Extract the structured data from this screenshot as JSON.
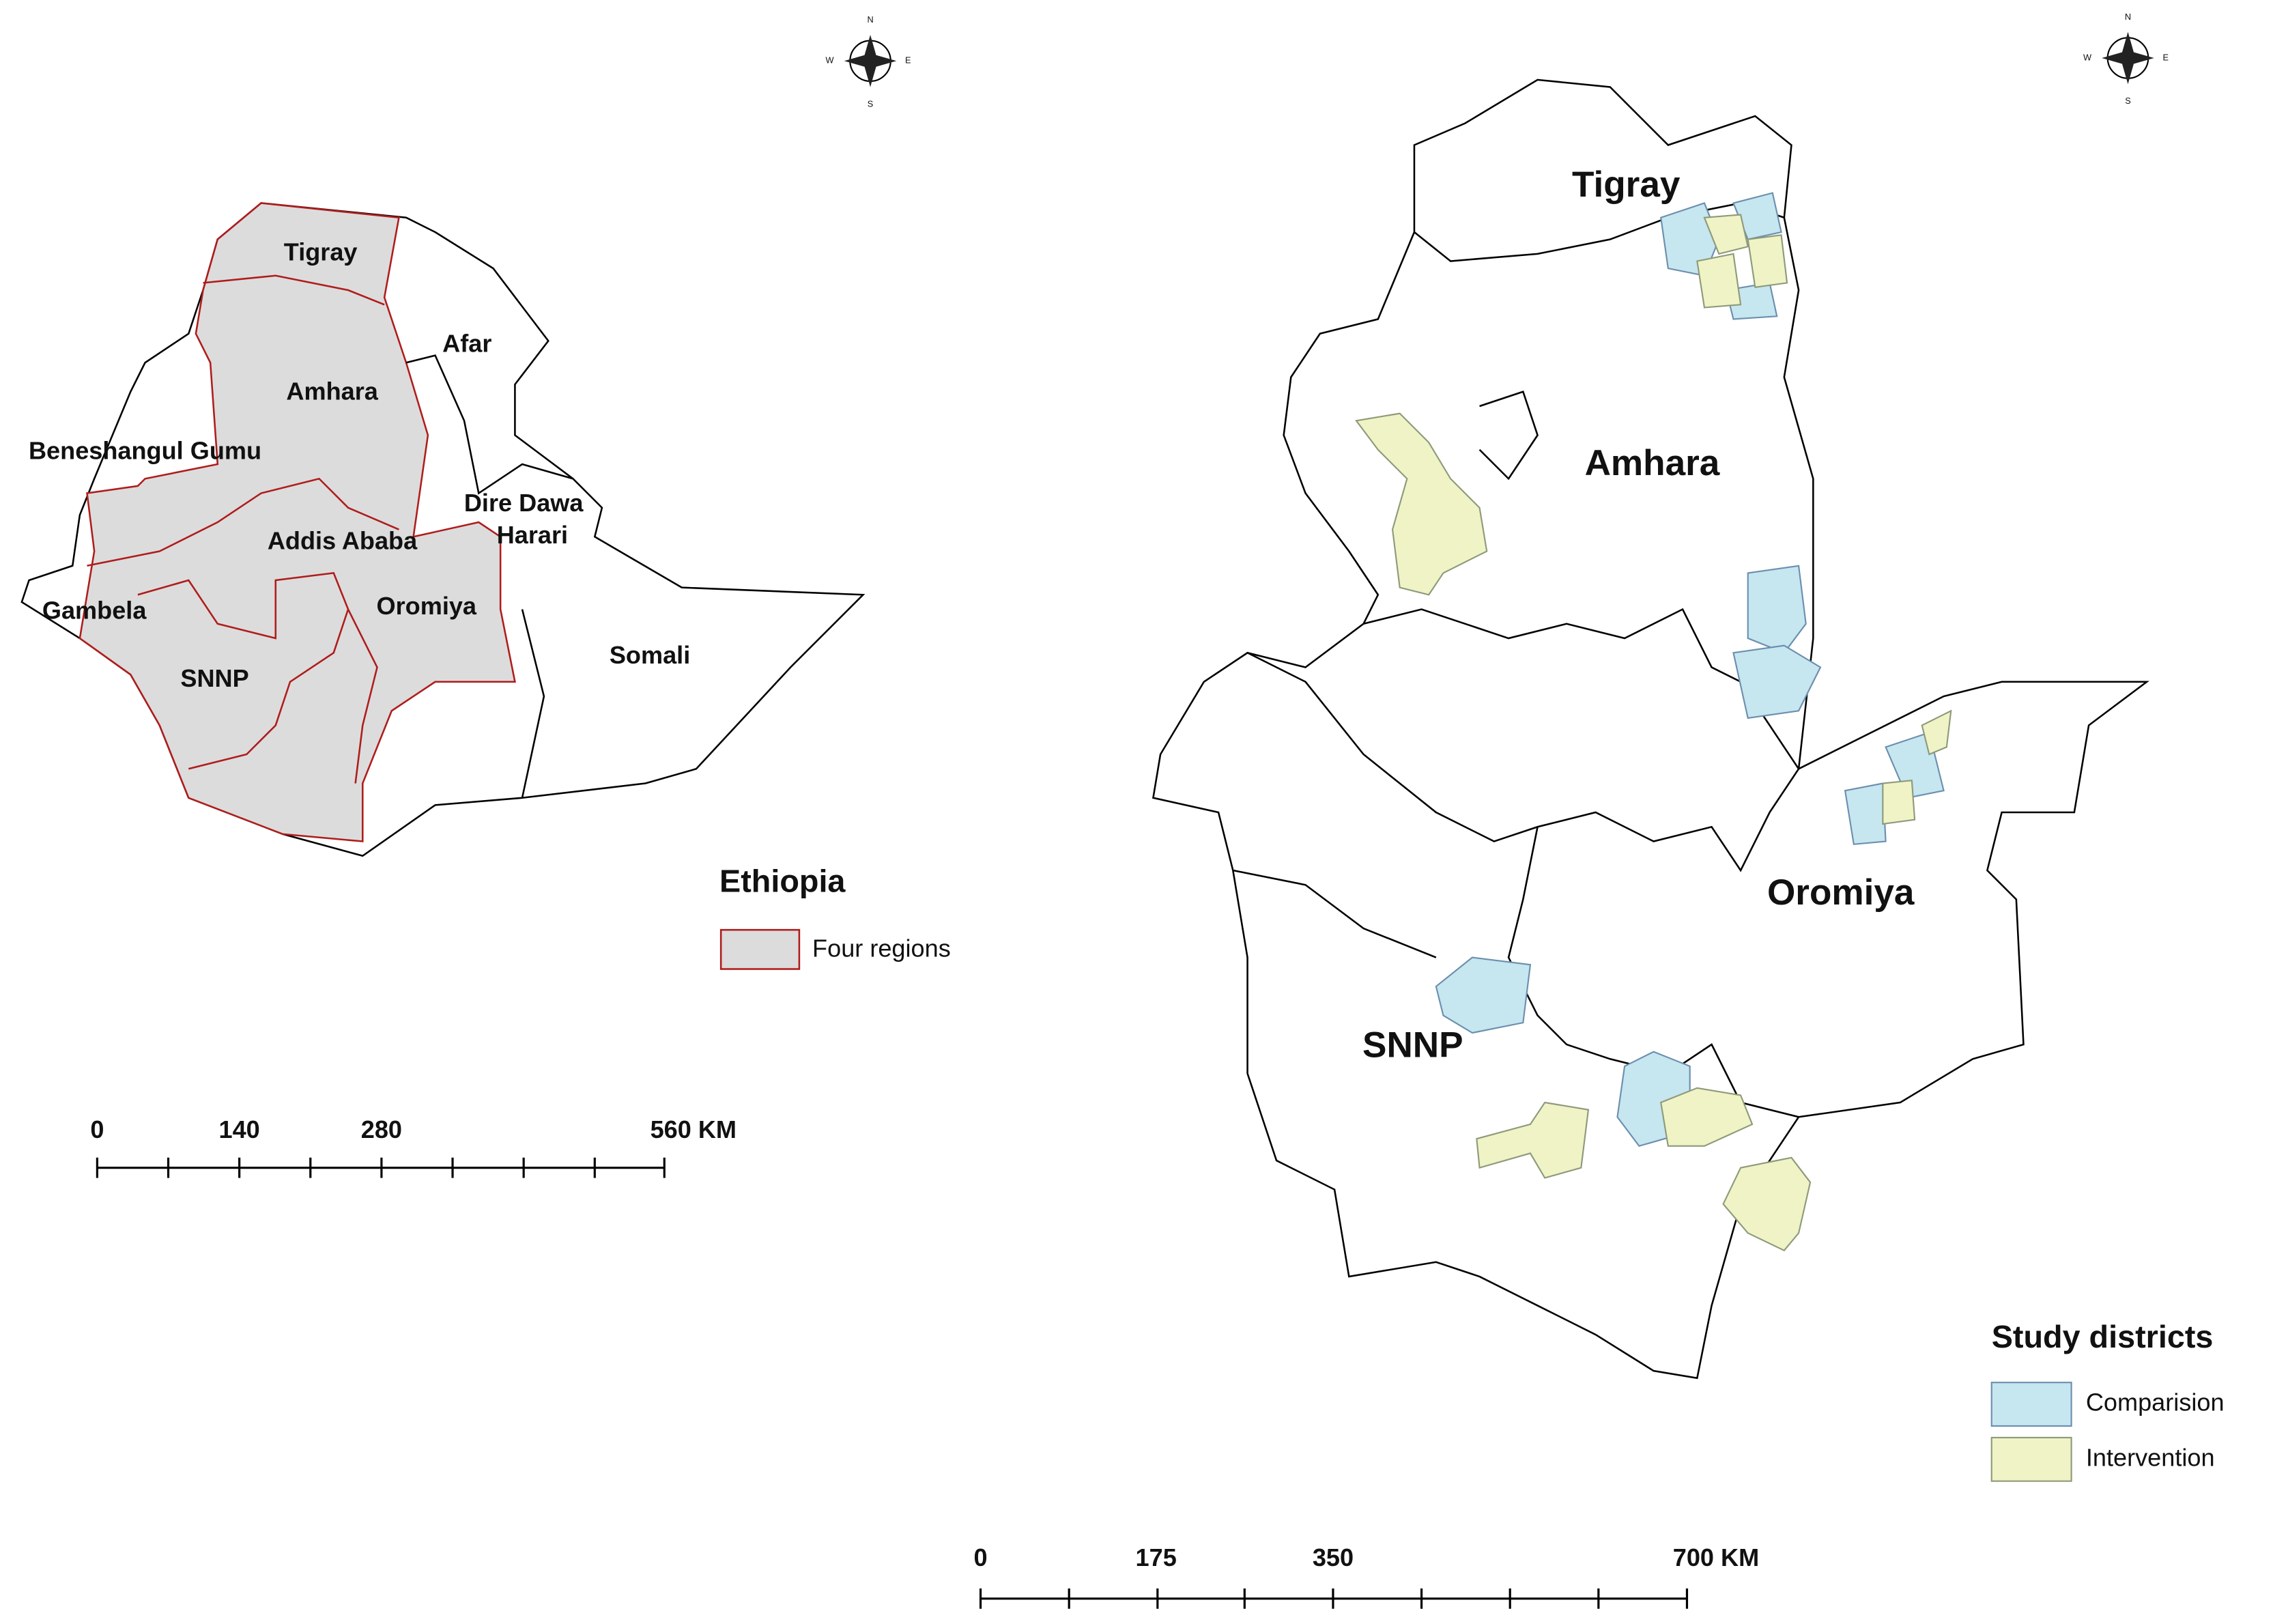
{
  "compass": {
    "north": "N",
    "east": "E",
    "south": "S",
    "west": "W"
  },
  "left_map": {
    "labels": [
      "Tigray",
      "Afar",
      "Amhara",
      "Beneshangul Gumu",
      "Dire Dawa",
      "Harari",
      "Addis Ababa",
      "Gambela",
      "Oromiya",
      "SNNP",
      "Somali"
    ],
    "legend": {
      "title": "Ethiopia",
      "items": [
        "Four regions"
      ]
    },
    "scale_bar": {
      "labels": [
        "0",
        "140",
        "280",
        "560 KM"
      ]
    }
  },
  "right_map": {
    "labels": [
      "Tigray",
      "Amhara",
      "Oromiya",
      "SNNP"
    ],
    "legend": {
      "title": "Study districts",
      "items": [
        "Comparision",
        "Intervention"
      ]
    },
    "scale_bar": {
      "labels": [
        "0",
        "175",
        "350",
        "700 KM"
      ]
    }
  }
}
